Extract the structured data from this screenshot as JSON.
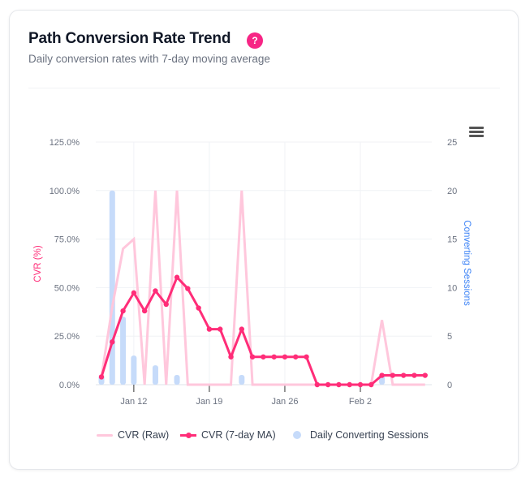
{
  "header": {
    "title": "Path Conversion Rate Trend",
    "help_label": "?",
    "subtitle": "Daily conversion rates with 7-day moving average"
  },
  "colors": {
    "raw": "#ffc7dc",
    "ma": "#ff2d78",
    "bars": "#c6dbfa",
    "left_axis": "#ff2d78",
    "right_axis": "#3b82f6",
    "help": "#f72585"
  },
  "chart_data": {
    "type": "line",
    "x": [
      "Jan 9",
      "Jan 10",
      "Jan 11",
      "Jan 12",
      "Jan 13",
      "Jan 14",
      "Jan 15",
      "Jan 16",
      "Jan 17",
      "Jan 18",
      "Jan 19",
      "Jan 20",
      "Jan 21",
      "Jan 22",
      "Jan 23",
      "Jan 24",
      "Jan 25",
      "Jan 26",
      "Jan 27",
      "Jan 28",
      "Jan 29",
      "Jan 30",
      "Jan 31",
      "Feb 1",
      "Feb 2",
      "Feb 3",
      "Feb 4",
      "Feb 5",
      "Feb 6",
      "Feb 7",
      "Feb 8"
    ],
    "x_ticks": [
      "Jan 12",
      "Jan 19",
      "Jan 26",
      "Feb 2"
    ],
    "series": [
      {
        "name": "CVR (Raw)",
        "type": "line",
        "axis": "left",
        "values": [
          4,
          40,
          70,
          75,
          0,
          100,
          0,
          100,
          0,
          0,
          0,
          0,
          0,
          100,
          0,
          0,
          0,
          0,
          0,
          0,
          0,
          0,
          0,
          0,
          0,
          0,
          33.3,
          0,
          0,
          0,
          0
        ]
      },
      {
        "name": "CVR (7-day MA)",
        "type": "line",
        "axis": "left",
        "values": [
          4,
          22,
          38,
          47.3,
          38,
          48.3,
          41.4,
          55.3,
          49.5,
          39.5,
          28.6,
          28.6,
          14.3,
          28.6,
          14.3,
          14.3,
          14.3,
          14.3,
          14.3,
          14.3,
          0,
          0,
          0,
          0,
          0,
          0,
          4.8,
          4.8,
          4.8,
          4.8,
          4.8
        ]
      },
      {
        "name": "Daily Converting Sessions",
        "type": "bar",
        "axis": "right",
        "values": [
          1,
          20,
          7,
          3,
          0,
          2,
          0,
          1,
          0,
          0,
          0,
          0,
          0,
          1,
          0,
          0,
          0,
          0,
          0,
          0,
          0,
          0,
          0,
          0,
          0,
          0,
          1,
          0,
          0,
          0,
          0
        ]
      }
    ],
    "left_axis": {
      "label": "CVR (%)",
      "range": [
        0,
        125
      ],
      "ticks": [
        "0.0%",
        "25.0%",
        "50.0%",
        "75.0%",
        "100.0%",
        "125.0%"
      ]
    },
    "right_axis": {
      "label": "Converting Sessions",
      "range": [
        0,
        25
      ],
      "ticks": [
        "0",
        "5",
        "10",
        "15",
        "20",
        "25"
      ]
    },
    "grid": true,
    "legend_position": "bottom"
  }
}
